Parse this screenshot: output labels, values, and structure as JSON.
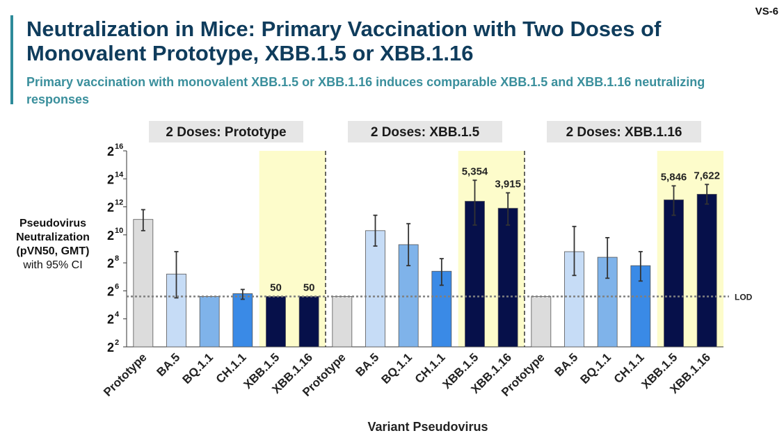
{
  "slide_id": "VS-6",
  "title": "Neutralization in Mice: Primary Vaccination with Two Doses of Monovalent Prototype, XBB.1.5 or XBB.1.16",
  "subtitle": "Primary vaccination with monovalent XBB.1.5 or XBB.1.16 induces comparable XBB.1.5 and XBB.1.16 neutralizing responses",
  "y_axis": {
    "line1": "Pseudovirus",
    "line2": "Neutralization",
    "line3": "(pVN50, GMT)",
    "line4": "with 95% CI"
  },
  "x_axis_label": "Variant Pseudovirus",
  "lod_label": "LOD",
  "colors": {
    "Prototype": "#dcdcdc",
    "BA.5": "#c6dcf6",
    "BQ.1.1": "#7fb3ea",
    "CH.1.1": "#3a8ae6",
    "XBB.1.5": "#06104a",
    "XBB.1.16": "#06104a",
    "highlight": "#fdfccb",
    "title": "#0f3c5c",
    "subtitle": "#3a8f9c"
  },
  "chart_data": {
    "type": "bar",
    "y_scale": "log2",
    "ylim_exp": [
      2,
      16
    ],
    "yticks_exp": [
      2,
      4,
      6,
      8,
      10,
      12,
      14,
      16
    ],
    "lod_exp": 5.6,
    "categories": [
      "Prototype",
      "BA.5",
      "BQ.1.1",
      "CH.1.1",
      "XBB.1.5",
      "XBB.1.16"
    ],
    "panels": [
      {
        "name": "2 Doses: Prototype",
        "highlight_categories": [
          "XBB.1.5",
          "XBB.1.16"
        ],
        "bars": [
          {
            "category": "Prototype",
            "exp": 11.1,
            "ci_exp": [
              10.3,
              11.8
            ],
            "label": ""
          },
          {
            "category": "BA.5",
            "exp": 7.2,
            "ci_exp": [
              5.5,
              8.8
            ],
            "label": ""
          },
          {
            "category": "BQ.1.1",
            "exp": 5.6,
            "ci_exp": null,
            "label": ""
          },
          {
            "category": "CH.1.1",
            "exp": 5.8,
            "ci_exp": [
              5.4,
              6.1
            ],
            "label": ""
          },
          {
            "category": "XBB.1.5",
            "exp": 5.6,
            "ci_exp": null,
            "label": "50"
          },
          {
            "category": "XBB.1.16",
            "exp": 5.6,
            "ci_exp": null,
            "label": "50"
          }
        ]
      },
      {
        "name": "2 Doses: XBB.1.5",
        "highlight_categories": [
          "XBB.1.5",
          "XBB.1.16"
        ],
        "bars": [
          {
            "category": "Prototype",
            "exp": 5.6,
            "ci_exp": null,
            "label": ""
          },
          {
            "category": "BA.5",
            "exp": 10.3,
            "ci_exp": [
              9.2,
              11.4
            ],
            "label": ""
          },
          {
            "category": "BQ.1.1",
            "exp": 9.3,
            "ci_exp": [
              7.8,
              10.8
            ],
            "label": ""
          },
          {
            "category": "CH.1.1",
            "exp": 7.4,
            "ci_exp": [
              6.4,
              8.3
            ],
            "label": ""
          },
          {
            "category": "XBB.1.5",
            "exp": 12.4,
            "ci_exp": [
              10.7,
              13.9
            ],
            "label": "5,354"
          },
          {
            "category": "XBB.1.16",
            "exp": 11.9,
            "ci_exp": [
              10.7,
              13.0
            ],
            "label": "3,915"
          }
        ]
      },
      {
        "name": "2 Doses: XBB.1.16",
        "highlight_categories": [
          "XBB.1.5",
          "XBB.1.16"
        ],
        "bars": [
          {
            "category": "Prototype",
            "exp": 5.6,
            "ci_exp": null,
            "label": ""
          },
          {
            "category": "BA.5",
            "exp": 8.8,
            "ci_exp": [
              7.1,
              10.6
            ],
            "label": ""
          },
          {
            "category": "BQ.1.1",
            "exp": 8.4,
            "ci_exp": [
              6.9,
              9.8
            ],
            "label": ""
          },
          {
            "category": "CH.1.1",
            "exp": 7.8,
            "ci_exp": [
              6.7,
              8.8
            ],
            "label": ""
          },
          {
            "category": "XBB.1.5",
            "exp": 12.5,
            "ci_exp": [
              11.4,
              13.5
            ],
            "label": "5,846"
          },
          {
            "category": "XBB.1.16",
            "exp": 12.9,
            "ci_exp": [
              12.2,
              13.6
            ],
            "label": "7,622"
          }
        ]
      }
    ]
  }
}
